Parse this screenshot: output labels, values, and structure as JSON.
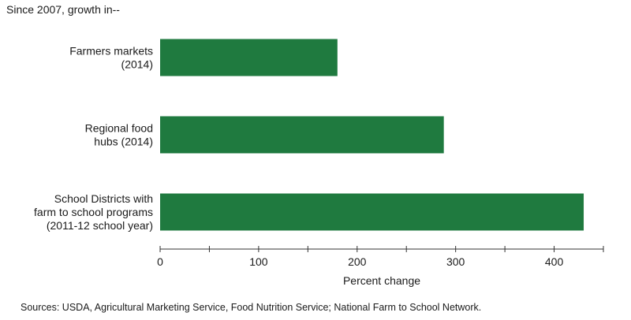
{
  "chart_data": {
    "type": "bar",
    "orientation": "horizontal",
    "subtitle": "Since 2007, growth in--",
    "categories": [
      [
        "Farmers markets",
        "(2014)"
      ],
      [
        "Regional food",
        "hubs (2014)"
      ],
      [
        "School Districts with",
        "farm to school programs",
        "(2011-12 school year)"
      ]
    ],
    "values": [
      180,
      288,
      430
    ],
    "xlabel": "Percent change",
    "ylabel": "",
    "xlim": [
      0,
      450
    ],
    "xticks": [
      0,
      100,
      200,
      300,
      400
    ],
    "bar_color": "#1f7a3f",
    "grid": false,
    "source": "Sources: USDA, Agricultural Marketing Service, Food Nutrition Service; National Farm to School Network."
  }
}
